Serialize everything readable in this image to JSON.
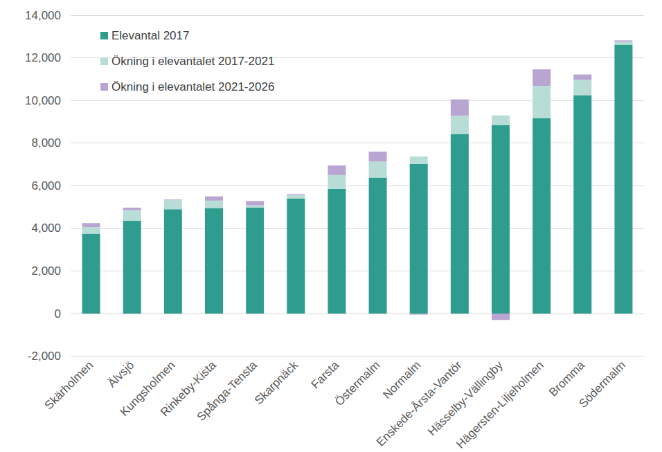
{
  "chart_data": {
    "type": "bar",
    "stacked": true,
    "grid": true,
    "legend": "upper left",
    "categories": [
      "Skärholmen",
      "Älvsjö",
      "Kungsholmen",
      "Rinkeby-Kista",
      "Spånga-Tensta",
      "Skarpnäck",
      "Farsta",
      "Östermalm",
      "Normalm",
      "Enskede-Årsta-Vantör",
      "Hässelby-Vällingby",
      "Hägersten-Liljeholmen",
      "Bromma",
      "Södermalm"
    ],
    "series": [
      {
        "name": "Elevantal 2017",
        "color": "#2e9d8f",
        "values": [
          3750,
          4350,
          4900,
          4950,
          4980,
          5400,
          5850,
          6380,
          7020,
          8430,
          8850,
          9180,
          10250,
          12620
        ]
      },
      {
        "name": "Ökning i elevantalet 2017-2021",
        "color": "#b7ddd6",
        "values": [
          300,
          500,
          420,
          350,
          100,
          150,
          650,
          750,
          350,
          850,
          450,
          1500,
          720,
          150
        ]
      },
      {
        "name": "Ökning i elevantalet 2021-2026",
        "color": "#b9a5d2",
        "values": [
          200,
          120,
          30,
          200,
          200,
          50,
          450,
          470,
          -50,
          770,
          -300,
          780,
          250,
          50
        ]
      }
    ],
    "ylim": [
      -2000,
      14000
    ],
    "yticks": [
      -2000,
      0,
      2000,
      4000,
      6000,
      8000,
      10000,
      12000,
      14000
    ]
  }
}
